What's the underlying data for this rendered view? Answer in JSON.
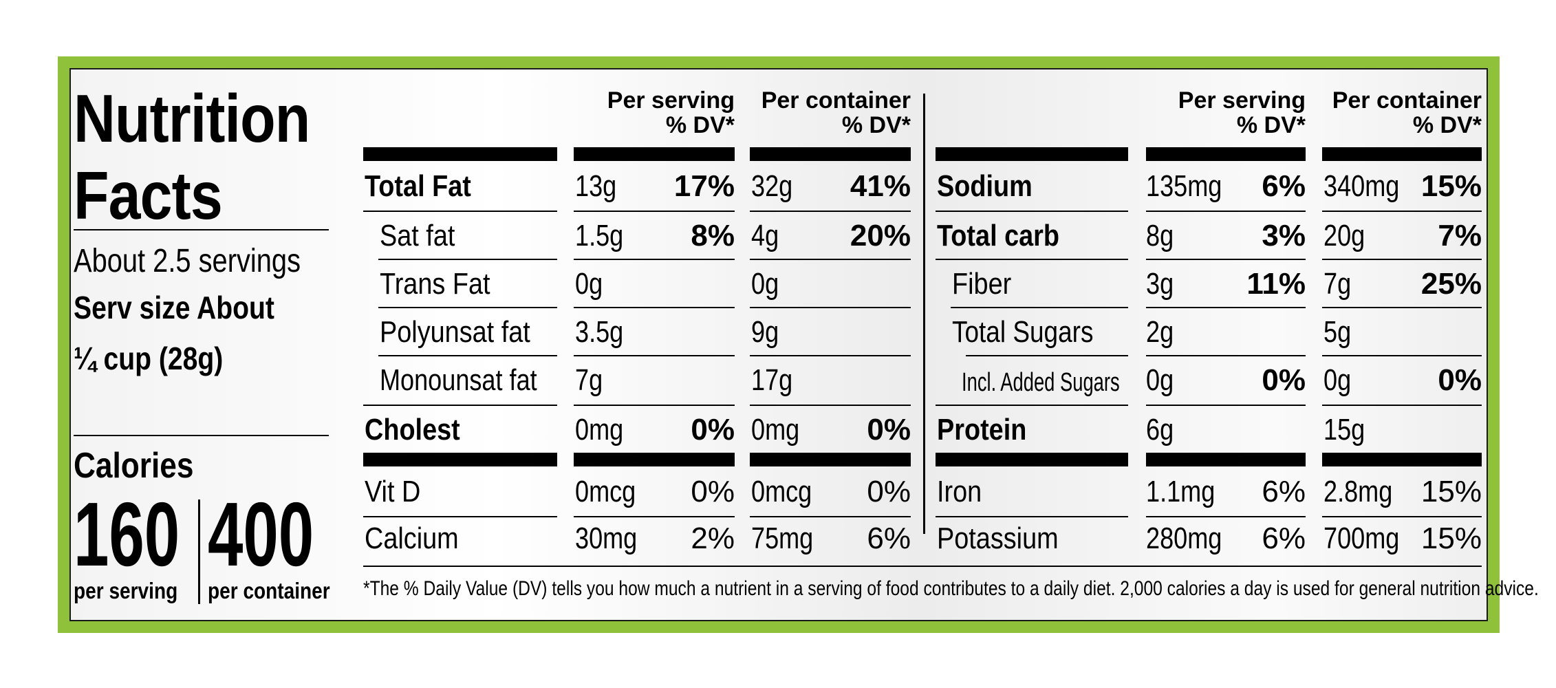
{
  "label": {
    "title_line1": "Nutrition",
    "title_line2": "Facts",
    "servings": "About 2.5 servings",
    "serv_size_line1": "Serv size About",
    "serv_size_line2": "¼ cup (28g)",
    "calories_label": "Calories",
    "calories_per_serving": "160",
    "calories_per_container": "400",
    "per_serving_label": "per serving",
    "per_container_label": "per container",
    "footnote": "*The % Daily Value (DV) tells you how much a nutrient in a serving of food contributes to a daily diet. 2,000 calories a day is used for general nutrition advice."
  },
  "headers": {
    "per_serving": "Per serving",
    "per_container": "Per container",
    "dv": "% DV*"
  },
  "left_rows": [
    {
      "name": "Total Fat",
      "serving_amount": "13g",
      "serving_dv": "17%",
      "container_amount": "32g",
      "container_dv": "41%"
    },
    {
      "name": "Sat fat",
      "serving_amount": "1.5g",
      "serving_dv": "8%",
      "container_amount": "4g",
      "container_dv": "20%"
    },
    {
      "name": "Trans Fat",
      "serving_amount": "0g",
      "serving_dv": "",
      "container_amount": "0g",
      "container_dv": ""
    },
    {
      "name": "Polyunsat fat",
      "serving_amount": "3.5g",
      "serving_dv": "",
      "container_amount": "9g",
      "container_dv": ""
    },
    {
      "name": "Monounsat fat",
      "serving_amount": "7g",
      "serving_dv": "",
      "container_amount": "17g",
      "container_dv": ""
    },
    {
      "name": "Cholest",
      "serving_amount": "0mg",
      "serving_dv": "0%",
      "container_amount": "0mg",
      "container_dv": "0%"
    },
    {
      "name": "Vit D",
      "serving_amount": "0mcg",
      "serving_dv": "0%",
      "container_amount": "0mcg",
      "container_dv": "0%"
    },
    {
      "name": "Calcium",
      "serving_amount": "30mg",
      "serving_dv": "2%",
      "container_amount": "75mg",
      "container_dv": "6%"
    }
  ],
  "right_rows": [
    {
      "name": "Sodium",
      "serving_amount": "135mg",
      "serving_dv": "6%",
      "container_amount": "340mg",
      "container_dv": "15%"
    },
    {
      "name": "Total carb",
      "serving_amount": "8g",
      "serving_dv": "3%",
      "container_amount": "20g",
      "container_dv": "7%"
    },
    {
      "name": "Fiber",
      "serving_amount": "3g",
      "serving_dv": "11%",
      "container_amount": "7g",
      "container_dv": "25%"
    },
    {
      "name": "Total Sugars",
      "serving_amount": "2g",
      "serving_dv": "",
      "container_amount": "5g",
      "container_dv": ""
    },
    {
      "name": "Incl. Added Sugars",
      "serving_amount": "0g",
      "serving_dv": "0%",
      "container_amount": "0g",
      "container_dv": "0%"
    },
    {
      "name": "Protein",
      "serving_amount": "6g",
      "serving_dv": "",
      "container_amount": "15g",
      "container_dv": ""
    },
    {
      "name": "Iron",
      "serving_amount": "1.1mg",
      "serving_dv": "6%",
      "container_amount": "2.8mg",
      "container_dv": "15%"
    },
    {
      "name": "Potassium",
      "serving_amount": "280mg",
      "serving_dv": "6%",
      "container_amount": "700mg",
      "container_dv": "15%"
    }
  ],
  "colors": {
    "border_green": "#8fc13a",
    "ink": "#000000"
  }
}
